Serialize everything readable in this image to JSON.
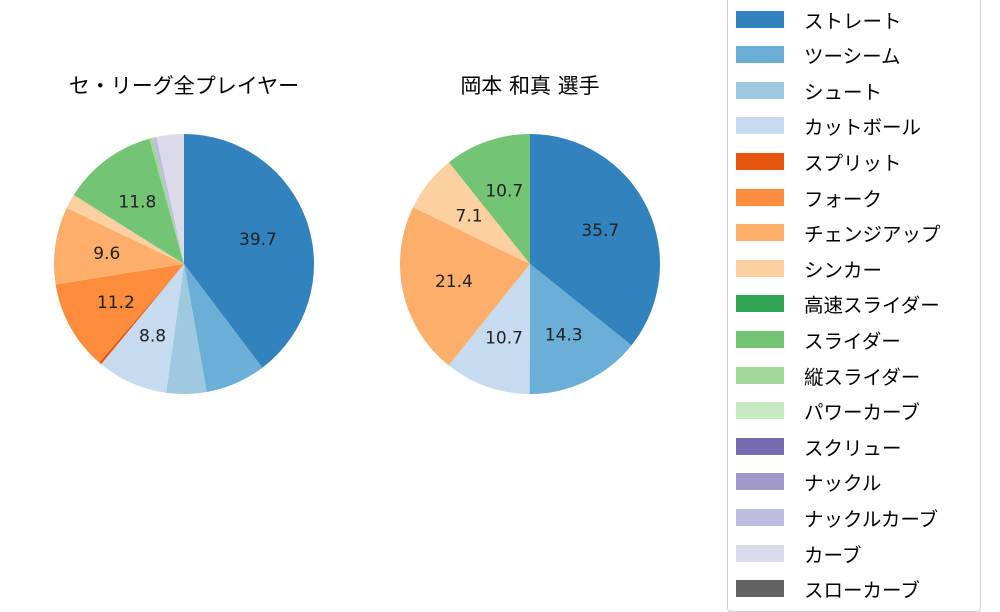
{
  "chart_data": [
    {
      "type": "pie",
      "title": "セ・リーグ全プレイヤー",
      "categories": [
        "ストレート",
        "ツーシーム",
        "シュート",
        "カットボール",
        "スプリット",
        "フォーク",
        "チェンジアップ",
        "シンカー",
        "スライダー",
        "縦スライダー",
        "ナックルカーブ",
        "カーブ"
      ],
      "values": [
        39.7,
        7.5,
        5.0,
        8.8,
        0.3,
        11.2,
        9.6,
        1.8,
        11.8,
        0.4,
        0.5,
        3.4
      ],
      "labels_shown": {
        "ストレート": "39.7",
        "カットボール": "8.8",
        "フォーク": "11.2",
        "チェンジアップ": "9.6",
        "スライダー": "11.8"
      },
      "start_angle": "90 (top), clockwise"
    },
    {
      "type": "pie",
      "title": "岡本 和真  選手",
      "categories": [
        "ストレート",
        "ツーシーム",
        "カットボール",
        "チェンジアップ",
        "シンカー",
        "スライダー"
      ],
      "values": [
        35.7,
        14.3,
        10.7,
        21.4,
        7.1,
        10.7
      ],
      "labels_shown": {
        "ストレート": "35.7",
        "ツーシーム": "14.3",
        "カットボール": "10.7",
        "チェンジアップ": "21.4",
        "シンカー": "7.1",
        "スライダー": "10.7"
      },
      "start_angle": "90 (top), clockwise"
    }
  ],
  "legend": [
    {
      "label": "ストレート",
      "color": "#3182bd"
    },
    {
      "label": "ツーシーム",
      "color": "#6baed6"
    },
    {
      "label": "シュート",
      "color": "#9ecae1"
    },
    {
      "label": "カットボール",
      "color": "#c6dbef"
    },
    {
      "label": "スプリット",
      "color": "#e6550d"
    },
    {
      "label": "フォーク",
      "color": "#fd8d3c"
    },
    {
      "label": "チェンジアップ",
      "color": "#fdae6b"
    },
    {
      "label": "シンカー",
      "color": "#fdd0a2"
    },
    {
      "label": "高速スライダー",
      "color": "#31a354"
    },
    {
      "label": "スライダー",
      "color": "#74c476"
    },
    {
      "label": "縦スライダー",
      "color": "#a1d99b"
    },
    {
      "label": "パワーカーブ",
      "color": "#c7e9c0"
    },
    {
      "label": "スクリュー",
      "color": "#756bb1"
    },
    {
      "label": "ナックル",
      "color": "#9e9ac8"
    },
    {
      "label": "ナックルカーブ",
      "color": "#bcbddc"
    },
    {
      "label": "カーブ",
      "color": "#dadaeb"
    },
    {
      "label": "スローカーブ",
      "color": "#636363"
    }
  ]
}
